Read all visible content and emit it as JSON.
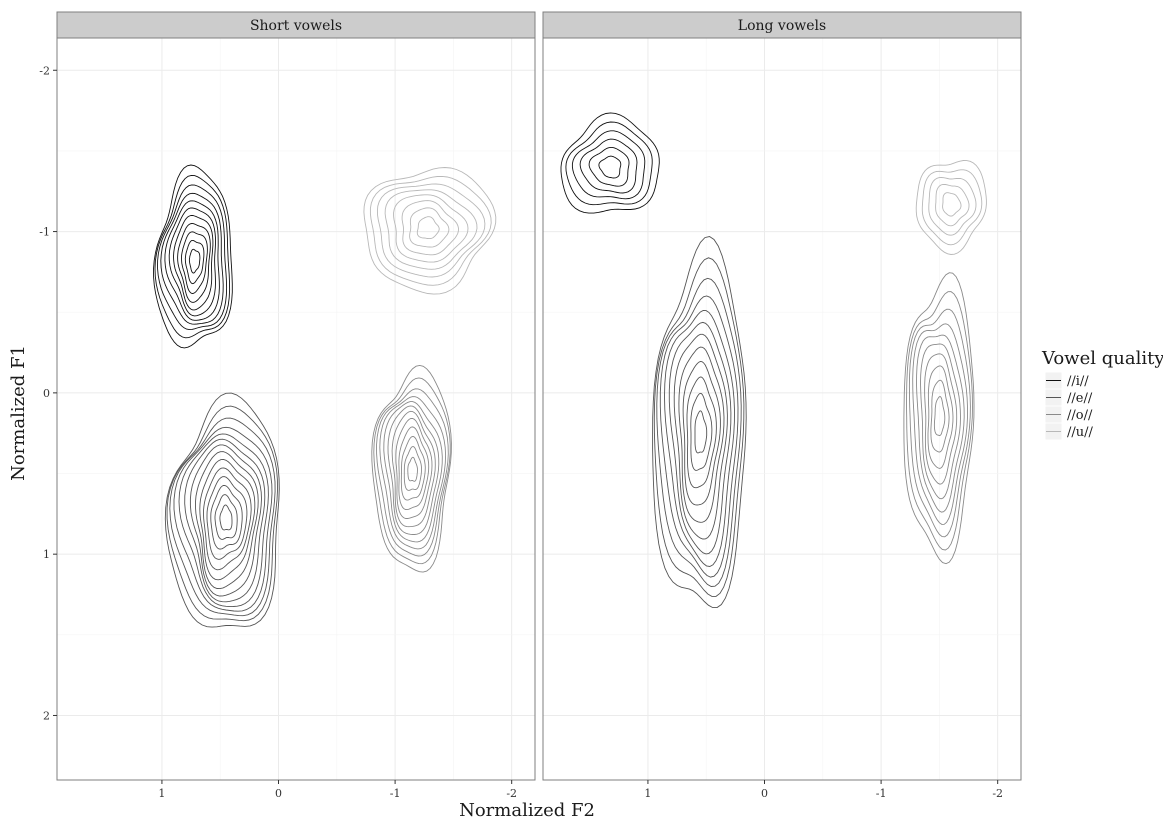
{
  "chart_data": {
    "type": "contour",
    "xlabel": "Normalized F2",
    "ylabel": "Normalized F1",
    "x_reversed": true,
    "y_reversed": true,
    "xlim": [
      1.9,
      -2.2
    ],
    "ylim": [
      -2.2,
      2.4
    ],
    "x_ticks": [
      1,
      0,
      -1,
      -2
    ],
    "x_tick_labels": [
      "1",
      "0",
      "-1",
      "-2"
    ],
    "y_ticks": [
      -2,
      -1,
      0,
      1,
      2
    ],
    "y_tick_labels": [
      "-2",
      "-1",
      "0",
      "1",
      "2"
    ],
    "grid": true,
    "legend": {
      "title": "Vowel quality",
      "position": "right",
      "entries": [
        {
          "label": "//i//",
          "color": "#111111"
        },
        {
          "label": "//e//",
          "color": "#555555"
        },
        {
          "label": "//o//",
          "color": "#8a8a8a"
        },
        {
          "label": "//u//",
          "color": "#b8b8b8"
        }
      ]
    },
    "panels": [
      {
        "title": "Short vowels",
        "series": [
          {
            "vowel": "//i//",
            "center": [
              0.72,
              -0.82
            ],
            "spread": [
              0.33,
              0.55
            ],
            "levels": 11
          },
          {
            "vowel": "//e//",
            "center": [
              0.45,
              0.78
            ],
            "spread": [
              0.48,
              0.72
            ],
            "levels": 14
          },
          {
            "vowel": "//o//",
            "center": [
              -1.15,
              0.48
            ],
            "spread": [
              0.33,
              0.62
            ],
            "levels": 12
          },
          {
            "vowel": "//u//",
            "center": [
              -1.28,
              -1.02
            ],
            "spread": [
              0.55,
              0.38
            ],
            "levels": 8
          }
        ]
      },
      {
        "title": "Long vowels",
        "series": [
          {
            "vowel": "//i//",
            "center": [
              1.32,
              -1.4
            ],
            "spread": [
              0.42,
              0.3
            ],
            "levels": 6
          },
          {
            "vowel": "//e//",
            "center": [
              0.55,
              0.25
            ],
            "spread": [
              0.4,
              1.1
            ],
            "levels": 12
          },
          {
            "vowel": "//o//",
            "center": [
              -1.5,
              0.15
            ],
            "spread": [
              0.3,
              0.85
            ],
            "levels": 10
          },
          {
            "vowel": "//u//",
            "center": [
              -1.6,
              -1.17
            ],
            "spread": [
              0.3,
              0.28
            ],
            "levels": 5
          }
        ]
      }
    ]
  }
}
